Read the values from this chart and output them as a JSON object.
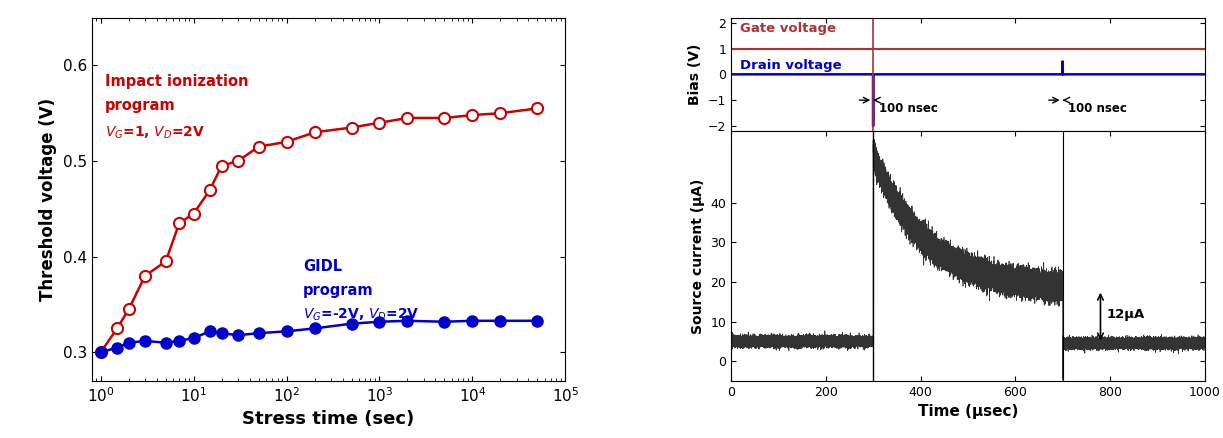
{
  "left_panel": {
    "red_x": [
      1.0,
      1.5,
      2.0,
      3.0,
      5.0,
      7.0,
      10.0,
      15.0,
      20.0,
      30.0,
      50.0,
      100.0,
      200.0,
      500.0,
      1000.0,
      2000.0,
      5000.0,
      10000.0,
      20000.0,
      50000.0
    ],
    "red_y": [
      0.3,
      0.325,
      0.345,
      0.38,
      0.395,
      0.435,
      0.445,
      0.47,
      0.495,
      0.5,
      0.515,
      0.52,
      0.53,
      0.535,
      0.54,
      0.545,
      0.545,
      0.548,
      0.55,
      0.555
    ],
    "blue_x": [
      1.0,
      1.5,
      2.0,
      3.0,
      5.0,
      7.0,
      10.0,
      15.0,
      20.0,
      30.0,
      50.0,
      100.0,
      200.0,
      500.0,
      1000.0,
      2000.0,
      5000.0,
      10000.0,
      20000.0,
      50000.0
    ],
    "blue_y": [
      0.3,
      0.305,
      0.31,
      0.312,
      0.31,
      0.312,
      0.315,
      0.322,
      0.32,
      0.318,
      0.32,
      0.322,
      0.325,
      0.33,
      0.332,
      0.333,
      0.332,
      0.333,
      0.333,
      0.333
    ],
    "red_color": "#cc0000",
    "blue_color": "#0000cc",
    "ylabel": "Threshold voltage (V)",
    "xlabel": "Stress time (sec)",
    "ylim": [
      0.27,
      0.65
    ],
    "yticks": [
      0.3,
      0.4,
      0.5,
      0.6
    ],
    "background": "#ffffff"
  },
  "top_right": {
    "gate_level": 1.0,
    "drain_level": 0.5,
    "gate_color": "#aa3333",
    "drain_color": "#0000cc",
    "ylim": [
      -2.2,
      2.2
    ],
    "yticks": [
      -2,
      -1,
      0,
      1,
      2
    ],
    "ylabel": "Bias (V)",
    "pulse1_x": 300,
    "pulse2_x": 700,
    "xlabel": "Time (μsec)"
  },
  "bottom_right": {
    "baseline": 5.0,
    "peak": 52.0,
    "decay_end": 18.0,
    "drop_level": 4.5,
    "ylabel": "Source current (μA)",
    "xlabel": "Time (μsec)",
    "xlim": [
      0,
      1000
    ],
    "ylim": [
      -5,
      58
    ],
    "yticks": [
      0,
      10,
      20,
      30,
      40
    ],
    "color": "#333333"
  }
}
